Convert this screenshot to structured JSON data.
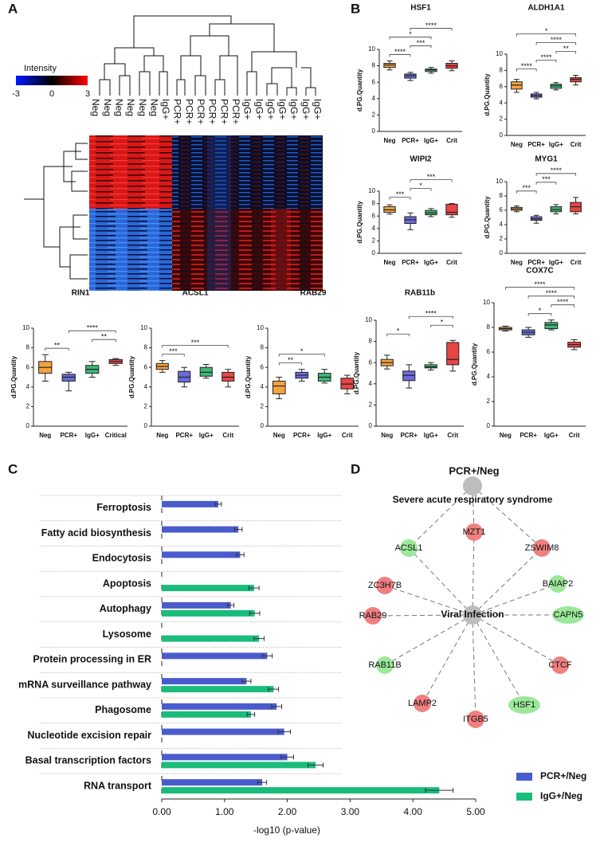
{
  "panels": [
    "A",
    "B",
    "C",
    "D"
  ],
  "heatmap": {
    "legend_title": "Intensity",
    "legend_ticks": [
      -3,
      0,
      3
    ],
    "columns": [
      "Neg",
      "Neg",
      "Neg",
      "Neg",
      "Neg",
      "Neg",
      "IgG+",
      "PCR+",
      "PCR+",
      "PCR+",
      "PCR+",
      "PCR+",
      "PCR+",
      "IgG+",
      "IgG+",
      "IgG+",
      "IgG+",
      "IgG+",
      "IgG+",
      "IgG+"
    ]
  },
  "chart_data": [
    {
      "type": "box",
      "title": "HSF1",
      "ylabel": "d.PG.Quantity",
      "ylim": [
        0,
        10
      ],
      "yticks": [
        0,
        2,
        4,
        6,
        8,
        10
      ],
      "categories": [
        "Neg",
        "PCR+",
        "IgG+",
        "Crit"
      ],
      "colors": [
        "#f4a340",
        "#6b6bd9",
        "#3cb878",
        "#e84545"
      ],
      "boxes": [
        {
          "min": 7.5,
          "q1": 7.8,
          "median": 8.1,
          "q3": 8.3,
          "max": 8.6
        },
        {
          "min": 6.2,
          "q1": 6.5,
          "median": 6.8,
          "q3": 7.0,
          "max": 7.2
        },
        {
          "min": 7.1,
          "q1": 7.3,
          "median": 7.5,
          "q3": 7.6,
          "max": 7.8
        },
        {
          "min": 7.4,
          "q1": 7.7,
          "median": 8.0,
          "q3": 8.3,
          "max": 8.6
        }
      ],
      "comparisons": [
        {
          "pair": [
            "Neg",
            "PCR+"
          ],
          "label": "****"
        },
        {
          "pair": [
            "PCR+",
            "IgG+"
          ],
          "label": "***"
        },
        {
          "pair": [
            "Neg",
            "IgG+"
          ],
          "label": "*"
        },
        {
          "pair": [
            "PCR+",
            "Crit"
          ],
          "label": "****"
        }
      ]
    },
    {
      "type": "box",
      "title": "ALDH1A1",
      "ylabel": "d.PG.Quantity",
      "ylim": [
        0,
        10
      ],
      "yticks": [
        0,
        2,
        4,
        6,
        8,
        10
      ],
      "categories": [
        "Neg",
        "PCR+",
        "IgG+",
        "Crit"
      ],
      "colors": [
        "#f4a340",
        "#6b6bd9",
        "#3cb878",
        "#e84545"
      ],
      "boxes": [
        {
          "min": 5.3,
          "q1": 5.7,
          "median": 6.2,
          "q3": 6.6,
          "max": 6.9
        },
        {
          "min": 4.5,
          "q1": 4.7,
          "median": 4.9,
          "q3": 5.1,
          "max": 5.3
        },
        {
          "min": 5.6,
          "q1": 5.8,
          "median": 6.1,
          "q3": 6.3,
          "max": 6.5
        },
        {
          "min": 6.2,
          "q1": 6.6,
          "median": 6.9,
          "q3": 7.1,
          "max": 7.4
        }
      ],
      "comparisons": [
        {
          "pair": [
            "Neg",
            "PCR+"
          ],
          "label": "****"
        },
        {
          "pair": [
            "PCR+",
            "IgG+"
          ],
          "label": "****"
        },
        {
          "pair": [
            "IgG+",
            "Crit"
          ],
          "label": "**"
        },
        {
          "pair": [
            "PCR+",
            "Crit"
          ],
          "label": "****"
        },
        {
          "pair": [
            "Neg",
            "Crit"
          ],
          "label": "*"
        }
      ]
    },
    {
      "type": "box",
      "title": "WIPI2",
      "ylabel": "d.PG.Quantity",
      "ylim": [
        0,
        10
      ],
      "yticks": [
        0,
        2,
        4,
        6,
        8,
        10
      ],
      "categories": [
        "Neg",
        "PCR+",
        "IgG+",
        "Crit"
      ],
      "colors": [
        "#f4a340",
        "#6b6bd9",
        "#3cb878",
        "#e84545"
      ],
      "boxes": [
        {
          "min": 6.3,
          "q1": 6.6,
          "median": 7.0,
          "q3": 7.5,
          "max": 7.8
        },
        {
          "min": 3.8,
          "q1": 4.8,
          "median": 5.4,
          "q3": 5.9,
          "max": 6.5
        },
        {
          "min": 5.9,
          "q1": 6.2,
          "median": 6.5,
          "q3": 6.9,
          "max": 7.2
        },
        {
          "min": 5.8,
          "q1": 6.2,
          "median": 6.6,
          "q3": 7.9,
          "max": 8.0
        }
      ],
      "comparisons": [
        {
          "pair": [
            "Neg",
            "PCR+"
          ],
          "label": "***"
        },
        {
          "pair": [
            "PCR+",
            "IgG+"
          ],
          "label": "*"
        },
        {
          "pair": [
            "PCR+",
            "Crit"
          ],
          "label": "***"
        }
      ]
    },
    {
      "type": "box",
      "title": "MYG1",
      "ylabel": "d.PG.Quantity",
      "ylim": [
        0,
        10
      ],
      "yticks": [
        0,
        2,
        4,
        6,
        8,
        10
      ],
      "categories": [
        "Neg",
        "PCR+",
        "IgG+",
        "Crit"
      ],
      "colors": [
        "#f4a340",
        "#6b6bd9",
        "#3cb878",
        "#e84545"
      ],
      "boxes": [
        {
          "min": 5.8,
          "q1": 6.0,
          "median": 6.2,
          "q3": 6.4,
          "max": 6.6
        },
        {
          "min": 4.2,
          "q1": 4.6,
          "median": 4.8,
          "q3": 5.1,
          "max": 5.3
        },
        {
          "min": 5.5,
          "q1": 5.8,
          "median": 6.1,
          "q3": 6.5,
          "max": 6.8
        },
        {
          "min": 5.5,
          "q1": 5.8,
          "median": 6.5,
          "q3": 7.1,
          "max": 7.8
        }
      ],
      "comparisons": [
        {
          "pair": [
            "Neg",
            "PCR+"
          ],
          "label": "***"
        },
        {
          "pair": [
            "PCR+",
            "IgG+"
          ],
          "label": "***"
        },
        {
          "pair": [
            "PCR+",
            "Crit"
          ],
          "label": "****"
        }
      ]
    },
    {
      "type": "box",
      "title": "COX7C",
      "ylabel": "d.PG.Quantity",
      "ylim": [
        0,
        10
      ],
      "yticks": [
        0,
        2,
        4,
        6,
        8,
        10
      ],
      "categories": [
        "Neg",
        "PCR+",
        "IgG+",
        "Crit"
      ],
      "colors": [
        "#f4a340",
        "#6b6bd9",
        "#3cb878",
        "#e84545"
      ],
      "boxes": [
        {
          "min": 7.7,
          "q1": 7.8,
          "median": 7.9,
          "q3": 8.0,
          "max": 8.1
        },
        {
          "min": 7.2,
          "q1": 7.4,
          "median": 7.6,
          "q3": 7.8,
          "max": 8.0
        },
        {
          "min": 7.8,
          "q1": 7.9,
          "median": 8.2,
          "q3": 8.4,
          "max": 8.6
        },
        {
          "min": 6.2,
          "q1": 6.4,
          "median": 6.6,
          "q3": 6.8,
          "max": 7.0
        }
      ],
      "comparisons": [
        {
          "pair": [
            "PCR+",
            "IgG+"
          ],
          "label": "*"
        },
        {
          "pair": [
            "IgG+",
            "Crit"
          ],
          "label": "****"
        },
        {
          "pair": [
            "PCR+",
            "Crit"
          ],
          "label": "****"
        },
        {
          "pair": [
            "Neg",
            "Crit"
          ],
          "label": "****"
        }
      ]
    },
    {
      "type": "box",
      "title": "RIN1",
      "ylabel": "d.PG.Quantity",
      "ylim": [
        0,
        10
      ],
      "yticks": [
        0,
        2,
        4,
        6,
        8,
        10
      ],
      "categories": [
        "Neg",
        "PCR+",
        "IgG+",
        "Critical"
      ],
      "colors": [
        "#f4a340",
        "#6b6bd9",
        "#3cb878",
        "#e84545"
      ],
      "boxes": [
        {
          "min": 4.6,
          "q1": 5.4,
          "median": 6.0,
          "q3": 6.6,
          "max": 7.3
        },
        {
          "min": 3.6,
          "q1": 4.6,
          "median": 5.0,
          "q3": 5.3,
          "max": 5.5
        },
        {
          "min": 5.0,
          "q1": 5.4,
          "median": 5.8,
          "q3": 6.2,
          "max": 6.6
        },
        {
          "min": 6.2,
          "q1": 6.4,
          "median": 6.6,
          "q3": 6.8,
          "max": 6.9
        }
      ],
      "comparisons": [
        {
          "pair": [
            "Neg",
            "PCR+"
          ],
          "label": "**"
        },
        {
          "pair": [
            "IgG+",
            "Critical"
          ],
          "label": "**"
        },
        {
          "pair": [
            "PCR+",
            "Critical"
          ],
          "label": "****"
        }
      ]
    },
    {
      "type": "box",
      "title": "ACSL1",
      "ylabel": "d.PG.Quantity",
      "ylim": [
        0,
        10
      ],
      "yticks": [
        0,
        2,
        4,
        6,
        8,
        10
      ],
      "categories": [
        "Neg",
        "PCR+",
        "IgG+",
        "Crit"
      ],
      "colors": [
        "#f4a340",
        "#6b6bd9",
        "#3cb878",
        "#e84545"
      ],
      "boxes": [
        {
          "min": 5.5,
          "q1": 5.8,
          "median": 6.1,
          "q3": 6.4,
          "max": 6.7
        },
        {
          "min": 4.0,
          "q1": 4.5,
          "median": 5.0,
          "q3": 5.6,
          "max": 6.0
        },
        {
          "min": 4.9,
          "q1": 5.1,
          "median": 5.5,
          "q3": 6.0,
          "max": 6.3
        },
        {
          "min": 4.0,
          "q1": 4.6,
          "median": 5.0,
          "q3": 5.5,
          "max": 5.8
        }
      ],
      "comparisons": [
        {
          "pair": [
            "Neg",
            "PCR+"
          ],
          "label": "***"
        },
        {
          "pair": [
            "Neg",
            "Crit"
          ],
          "label": "***"
        }
      ]
    },
    {
      "type": "box",
      "title": "RAB29",
      "ylabel": "d.PG.Quantity",
      "ylim": [
        0,
        10
      ],
      "yticks": [
        0,
        2,
        4,
        6,
        8,
        10
      ],
      "categories": [
        "Neg",
        "PCR+",
        "IgG+",
        "Crit"
      ],
      "colors": [
        "#f4a340",
        "#6b6bd9",
        "#3cb878",
        "#e84545"
      ],
      "boxes": [
        {
          "min": 2.8,
          "q1": 3.3,
          "median": 4.1,
          "q3": 4.6,
          "max": 5.0
        },
        {
          "min": 4.6,
          "q1": 4.9,
          "median": 5.2,
          "q3": 5.5,
          "max": 5.8
        },
        {
          "min": 4.4,
          "q1": 4.6,
          "median": 5.0,
          "q3": 5.4,
          "max": 5.8
        },
        {
          "min": 3.3,
          "q1": 3.8,
          "median": 4.3,
          "q3": 4.9,
          "max": 5.2
        }
      ],
      "comparisons": [
        {
          "pair": [
            "Neg",
            "PCR+"
          ],
          "label": "**"
        },
        {
          "pair": [
            "Neg",
            "IgG+"
          ],
          "label": "*"
        }
      ]
    },
    {
      "type": "box",
      "title": "RAB11b",
      "ylabel": "d.PG.Quantity",
      "ylim": [
        0,
        10
      ],
      "yticks": [
        0,
        2,
        4,
        6,
        8,
        10
      ],
      "categories": [
        "Neg",
        "PCR+",
        "IgG+",
        "Crit"
      ],
      "colors": [
        "#f4a340",
        "#6b6bd9",
        "#3cb878",
        "#e84545"
      ],
      "boxes": [
        {
          "min": 5.4,
          "q1": 5.7,
          "median": 6.0,
          "q3": 6.3,
          "max": 6.7
        },
        {
          "min": 3.6,
          "q1": 4.3,
          "median": 4.8,
          "q3": 5.2,
          "max": 5.8
        },
        {
          "min": 5.3,
          "q1": 5.5,
          "median": 5.6,
          "q3": 5.8,
          "max": 6.0
        },
        {
          "min": 5.2,
          "q1": 5.8,
          "median": 6.3,
          "q3": 7.9,
          "max": 8.1
        }
      ],
      "comparisons": [
        {
          "pair": [
            "Neg",
            "PCR+"
          ],
          "label": "*"
        },
        {
          "pair": [
            "IgG+",
            "Crit"
          ],
          "label": "*"
        },
        {
          "pair": [
            "PCR+",
            "Crit"
          ],
          "label": "****"
        }
      ]
    },
    {
      "type": "bar",
      "orientation": "horizontal",
      "xlabel": "-log10 (p-value)",
      "legend": "lower right",
      "xlim": [
        0,
        5
      ],
      "xticks": [
        {
          "value": 0,
          "label": "0.00"
        },
        {
          "value": 1,
          "label": "1.00"
        },
        {
          "value": 2,
          "label": "2.00"
        },
        {
          "value": 3,
          "label": "3.00"
        },
        {
          "value": 4,
          "label": "4.00"
        },
        {
          "value": 5,
          "label": "5.00"
        }
      ],
      "categories": [
        "Ferroptosis",
        "Fatty acid biosynthesis",
        "Endocytosis",
        "Apoptosis",
        "Autophagy",
        "Lysosome",
        "Protein processing in ER",
        "mRNA surveillance pathway",
        "Phagosome",
        "Nucleotide excision repair",
        "Basal transcription factors",
        "RNA transport"
      ],
      "series": [
        {
          "name": "PCR+/Neg",
          "color": "#4a5ccc",
          "values": [
            0.9,
            1.22,
            1.25,
            null,
            1.1,
            null,
            1.68,
            1.35,
            1.83,
            1.95,
            2.0,
            1.6
          ],
          "errors": [
            0.05,
            0.06,
            0.06,
            null,
            0.05,
            null,
            0.08,
            0.07,
            0.08,
            0.1,
            0.1,
            0.07
          ]
        },
        {
          "name": "IgG+/Neg",
          "color": "#1abc7c",
          "values": [
            null,
            null,
            null,
            1.47,
            1.48,
            1.55,
            null,
            1.78,
            1.42,
            null,
            2.45,
            4.42
          ],
          "errors": [
            null,
            null,
            null,
            0.08,
            0.08,
            0.08,
            null,
            0.08,
            0.06,
            null,
            0.12,
            0.22
          ]
        }
      ]
    }
  ],
  "network": {
    "title": "PCR+/Neg",
    "nodes": [
      {
        "label": "Severe acute respiratory syndrome",
        "color": "#bdbdbd"
      },
      {
        "label": "Viral Infection",
        "color": "#bdbdbd"
      },
      {
        "label": "MZT1",
        "color": "#f08080"
      },
      {
        "label": "ZSWIM8",
        "color": "#f08080"
      },
      {
        "label": "ACSL1",
        "color": "#9be89b"
      },
      {
        "label": "BAIAP2",
        "color": "#9be89b"
      },
      {
        "label": "ZC3H7B",
        "color": "#f08080"
      },
      {
        "label": "CAPN5",
        "color": "#9be89b"
      },
      {
        "label": "RAB29",
        "color": "#f08080"
      },
      {
        "label": "CTCF",
        "color": "#f08080"
      },
      {
        "label": "RAB11B",
        "color": "#9be89b"
      },
      {
        "label": "HSF1",
        "color": "#9be89b"
      },
      {
        "label": "LAMP2",
        "color": "#f08080"
      },
      {
        "label": "ITGB5",
        "color": "#f08080"
      }
    ]
  }
}
